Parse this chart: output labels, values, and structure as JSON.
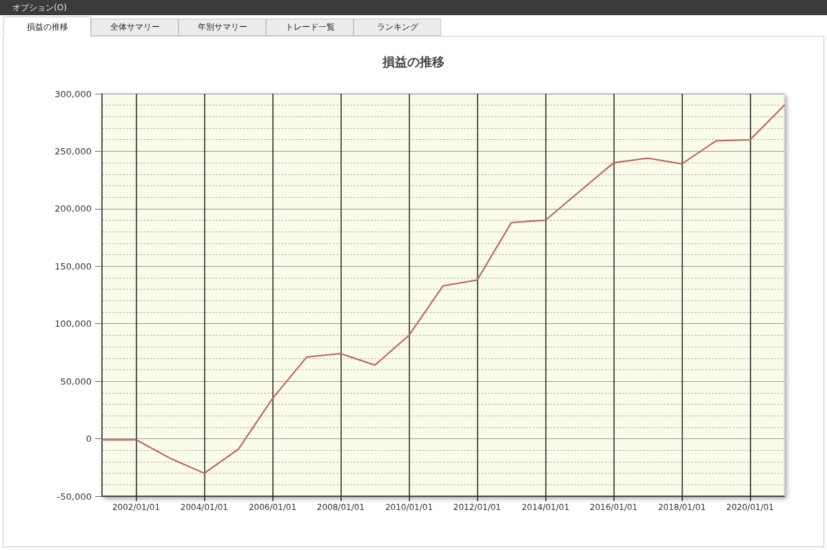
{
  "chart_data": {
    "type": "line",
    "title": "損益の推移",
    "x": [
      "2001-01-01",
      "2002-01-01",
      "2003-01-01",
      "2004-01-01",
      "2005-01-01",
      "2006-01-01",
      "2007-01-01",
      "2008-01-01",
      "2009-01-01",
      "2010-01-01",
      "2011-01-01",
      "2012-01-01",
      "2013-01-01",
      "2014-01-01",
      "2015-01-01",
      "2016-01-01",
      "2017-01-01",
      "2018-01-01",
      "2019-01-01",
      "2020-01-01",
      "2021-01-01"
    ],
    "series": [
      {
        "color": "#be5f5a",
        "values": [
          -1000,
          -1000,
          -17000,
          -30000,
          -9000,
          35000,
          71000,
          74000,
          64000,
          90000,
          133000,
          138000,
          188000,
          190000,
          215000,
          240000,
          244000,
          239000,
          259000,
          260000,
          290000
        ]
      }
    ],
    "xlim": [
      "2001-01-01",
      "2021-01-01"
    ],
    "xticks": [
      {
        "value": "2002-01-01",
        "label": "2002/01/01"
      },
      {
        "value": "2004-01-01",
        "label": "2004/01/01"
      },
      {
        "value": "2006-01-01",
        "label": "2006/01/01"
      },
      {
        "value": "2008-01-01",
        "label": "2008/01/01"
      },
      {
        "value": "2010-01-01",
        "label": "2010/01/01"
      },
      {
        "value": "2012-01-01",
        "label": "2012/01/01"
      },
      {
        "value": "2014-01-01",
        "label": "2014/01/01"
      },
      {
        "value": "2016-01-01",
        "label": "2016/01/01"
      },
      {
        "value": "2018-01-01",
        "label": "2018/01/01"
      },
      {
        "value": "2020-01-01",
        "label": "2020/01/01"
      }
    ],
    "ylim": [
      -50000,
      300000
    ],
    "yticks": [
      {
        "value": -50000,
        "label": "-50,000"
      },
      0,
      {
        "value": 50000,
        "label": "50,000"
      },
      {
        "value": 100000,
        "label": "100,000"
      },
      {
        "value": 150000,
        "label": "150,000"
      },
      {
        "value": 200000,
        "label": "200,000"
      },
      {
        "value": 250000,
        "label": "250,000"
      },
      {
        "value": 300000,
        "label": "300,000"
      }
    ],
    "grid": true,
    "line_style": "solid",
    "annotations": [
      "オプション(O)",
      "損益の推移",
      "全体サマリー",
      "年別サマリー",
      "トレード一覧",
      "ランキング"
    ]
  }
}
